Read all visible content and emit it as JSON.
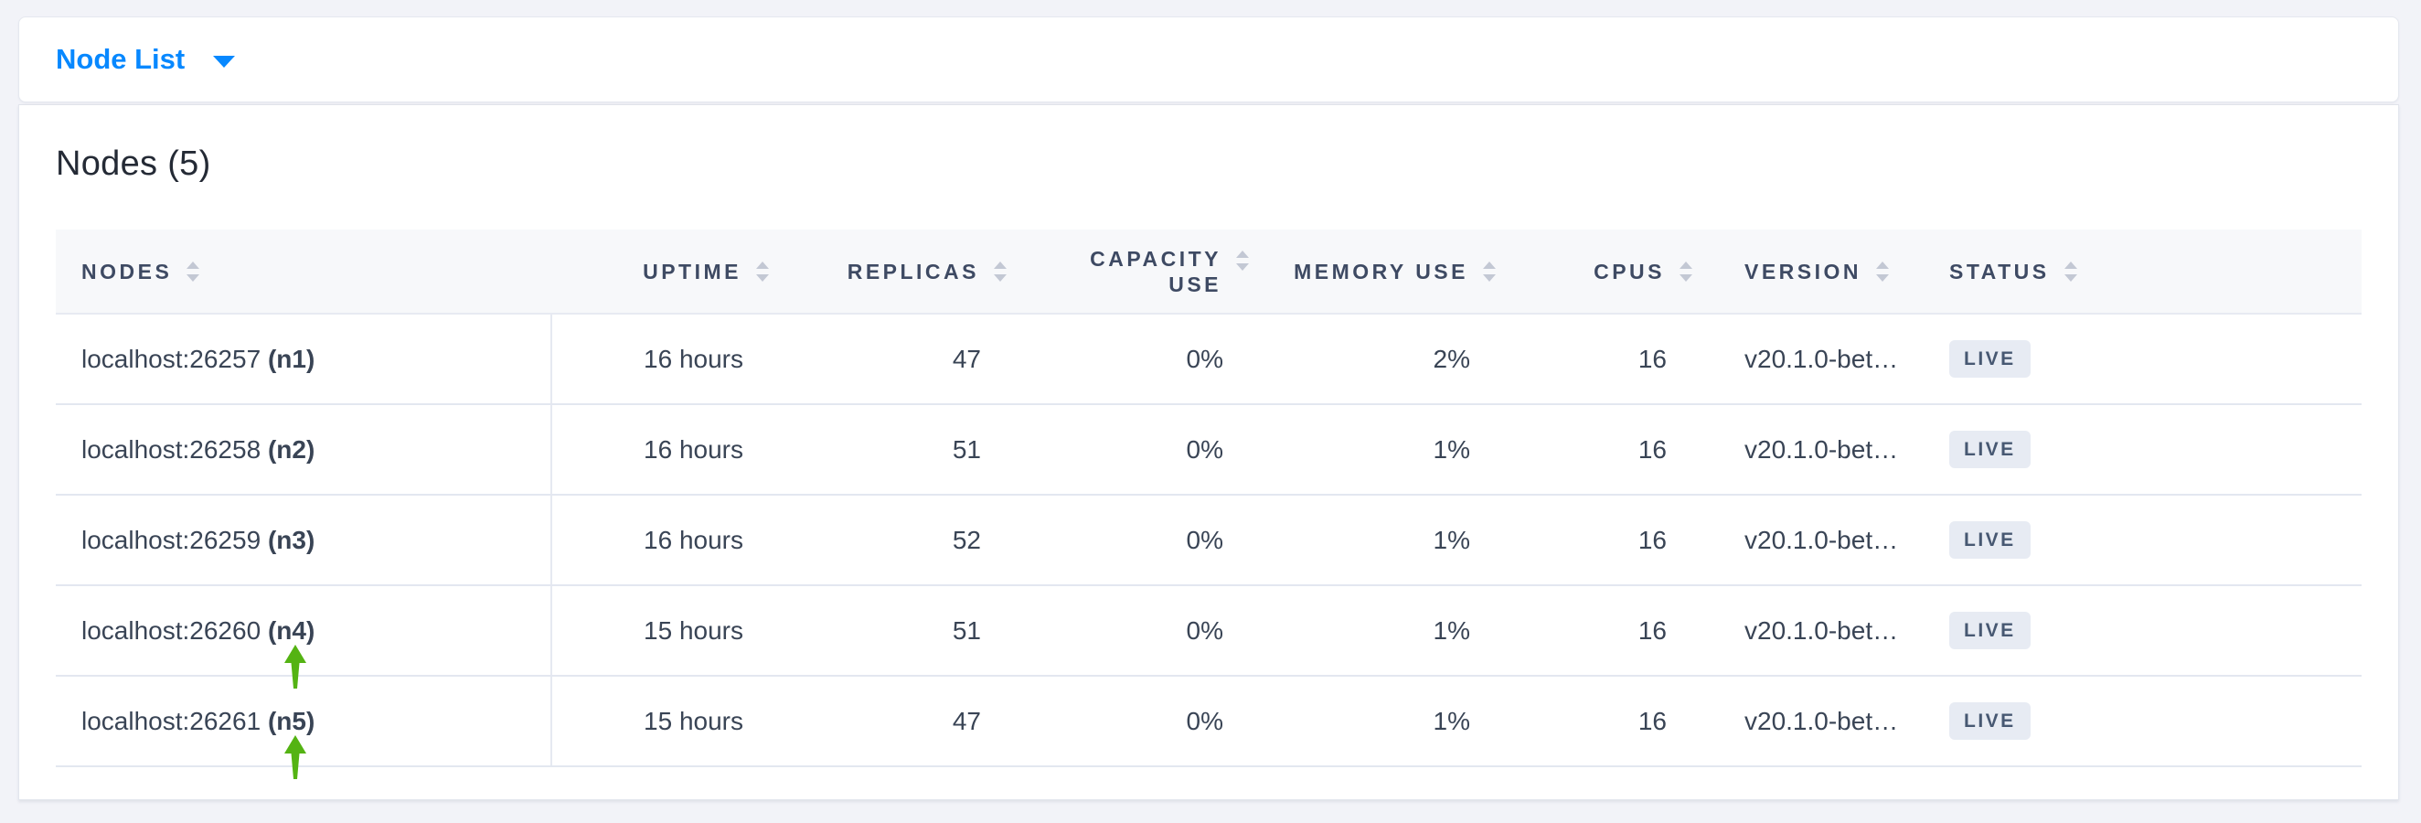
{
  "toolbar": {
    "dropdown_label": "Node List"
  },
  "panel": {
    "title": "Nodes (5)"
  },
  "nodes_table": {
    "columns": [
      {
        "key": "nodes",
        "label": "NODES",
        "align": "left",
        "two_line": false
      },
      {
        "key": "uptime",
        "label": "UPTIME",
        "align": "right",
        "two_line": false
      },
      {
        "key": "replicas",
        "label": "REPLICAS",
        "align": "right",
        "two_line": false
      },
      {
        "key": "capacity",
        "label": "CAPACITY USE",
        "align": "right",
        "two_line": true
      },
      {
        "key": "memory",
        "label": "MEMORY USE",
        "align": "right",
        "two_line": false
      },
      {
        "key": "cpus",
        "label": "CPUS",
        "align": "right",
        "two_line": false
      },
      {
        "key": "version",
        "label": "VERSION",
        "align": "left",
        "two_line": false
      },
      {
        "key": "status",
        "label": "STATUS",
        "align": "left",
        "two_line": false
      }
    ],
    "rows": [
      {
        "address": "localhost:26257",
        "node_id": "(n1)",
        "uptime": "16 hours",
        "replicas": "47",
        "capacity_use": "0%",
        "memory_use": "2%",
        "cpus": "16",
        "version": "v20.1.0-bet…",
        "status": "LIVE",
        "annotation_arrow": false
      },
      {
        "address": "localhost:26258",
        "node_id": "(n2)",
        "uptime": "16 hours",
        "replicas": "51",
        "capacity_use": "0%",
        "memory_use": "1%",
        "cpus": "16",
        "version": "v20.1.0-bet…",
        "status": "LIVE",
        "annotation_arrow": false
      },
      {
        "address": "localhost:26259",
        "node_id": "(n3)",
        "uptime": "16 hours",
        "replicas": "52",
        "capacity_use": "0%",
        "memory_use": "1%",
        "cpus": "16",
        "version": "v20.1.0-bet…",
        "status": "LIVE",
        "annotation_arrow": false
      },
      {
        "address": "localhost:26260",
        "node_id": "(n4)",
        "uptime": "15 hours",
        "replicas": "51",
        "capacity_use": "0%",
        "memory_use": "1%",
        "cpus": "16",
        "version": "v20.1.0-bet…",
        "status": "LIVE",
        "annotation_arrow": true
      },
      {
        "address": "localhost:26261",
        "node_id": "(n5)",
        "uptime": "15 hours",
        "replicas": "47",
        "capacity_use": "0%",
        "memory_use": "1%",
        "cpus": "16",
        "version": "v20.1.0-bet…",
        "status": "LIVE",
        "annotation_arrow": true
      }
    ]
  },
  "colors": {
    "accent_blue": "#0788ff",
    "badge_background": "#e7ebf3",
    "badge_text": "#475872",
    "annotation_arrow_green": "#54b313",
    "header_text": "#3e4a63",
    "cell_text": "#394455",
    "page_background": "#f2f3f8"
  }
}
